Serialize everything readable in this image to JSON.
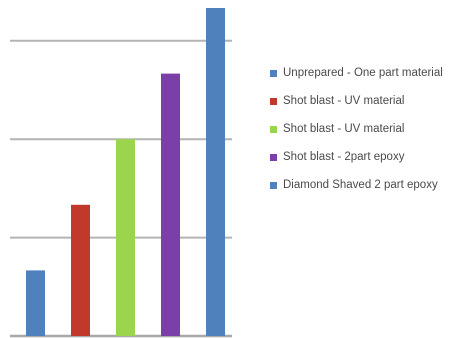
{
  "chart_data": {
    "type": "bar",
    "title": "",
    "xlabel": "",
    "ylabel": "",
    "ylim": [
      0,
      5
    ],
    "grid": true,
    "legend_position": "right",
    "categories": [
      "Unprepared - One part material",
      "Shot blast - UV material",
      "Shot blast - UV material",
      "Shot blast - 2part epoxy",
      "Diamond Shaved 2 part epoxy"
    ],
    "values": [
      1.0,
      2.0,
      3.0,
      4.0,
      5.0
    ],
    "colors": [
      "#4f81bd",
      "#c0392b",
      "#9bd44d",
      "#7b3fa8",
      "#4f81bd"
    ],
    "legend": [
      {
        "label": "Unprepared - One part material",
        "color": "#4f81bd"
      },
      {
        "label": "Shot blast - UV material",
        "color": "#c0392b"
      },
      {
        "label": "Shot blast - UV material",
        "color": "#9bd44d"
      },
      {
        "label": "Shot blast - 2part epoxy",
        "color": "#7b3fa8"
      },
      {
        "label": "Diamond Shaved 2 part epoxy",
        "color": "#4f81bd"
      }
    ]
  }
}
